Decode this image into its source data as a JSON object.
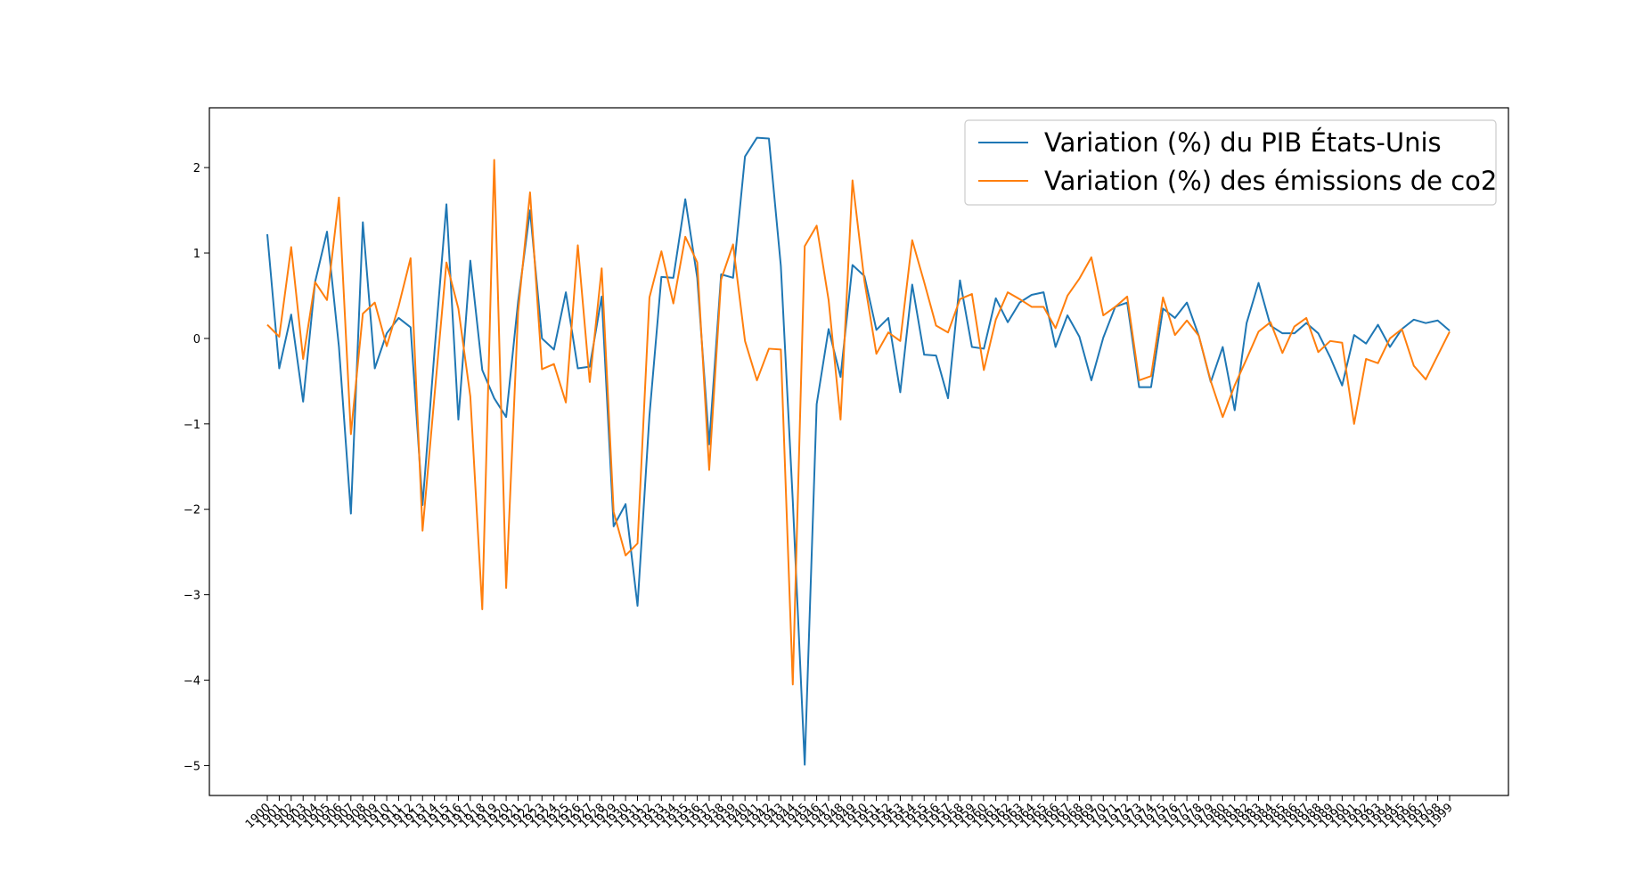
{
  "chart_data": {
    "type": "line",
    "title": "",
    "xlabel": "",
    "ylabel": "",
    "ylim": [
      -5.35,
      2.7
    ],
    "yticks": [
      -5,
      -4,
      -3,
      -2,
      -1,
      0,
      1,
      2
    ],
    "ytick_labels": [
      "−5",
      "−4",
      "−3",
      "−2",
      "−1",
      "0",
      "1",
      "2"
    ],
    "x": [
      "1900",
      "1901",
      "1902",
      "1903",
      "1904",
      "1905",
      "1906",
      "1907",
      "1908",
      "1909",
      "1910",
      "1911",
      "1912",
      "1913",
      "1914",
      "1915",
      "1916",
      "1917",
      "1918",
      "1919",
      "1920",
      "1921",
      "1922",
      "1923",
      "1924",
      "1925",
      "1926",
      "1927",
      "1928",
      "1929",
      "1930",
      "1931",
      "1932",
      "1933",
      "1934",
      "1935",
      "1936",
      "1937",
      "1938",
      "1939",
      "1940",
      "1941",
      "1942",
      "1943",
      "1944",
      "1945",
      "1946",
      "1947",
      "1948",
      "1949",
      "1950",
      "1951",
      "1952",
      "1953",
      "1954",
      "1955",
      "1956",
      "1957",
      "1958",
      "1959",
      "1960",
      "1961",
      "1962",
      "1963",
      "1964",
      "1965",
      "1966",
      "1967",
      "1968",
      "1969",
      "1970",
      "1971",
      "1972",
      "1973",
      "1974",
      "1975",
      "1976",
      "1977",
      "1978",
      "1979",
      "1980",
      "1981",
      "1982",
      "1983",
      "1984",
      "1985",
      "1986",
      "1987",
      "1988",
      "1989",
      "1990",
      "1991",
      "1992",
      "1993",
      "1994",
      "1995",
      "1996",
      "1997",
      "1998",
      "1999"
    ],
    "series": [
      {
        "name": "Variation (%) du PIB États-Unis",
        "color": "#1f77b4",
        "values": [
          1.22,
          -0.35,
          0.28,
          -0.74,
          0.66,
          1.25,
          -0.1,
          -2.05,
          1.36,
          -0.35,
          0.06,
          0.24,
          0.13,
          -1.95,
          -0.15,
          1.57,
          -0.95,
          0.91,
          -0.37,
          -0.7,
          -0.92,
          0.43,
          1.5,
          0.0,
          -0.13,
          0.54,
          -0.35,
          -0.33,
          0.49,
          -2.2,
          -1.94,
          -3.13,
          -0.9,
          0.72,
          0.71,
          1.63,
          0.71,
          -1.24,
          0.75,
          0.71,
          2.13,
          2.35,
          2.34,
          0.85,
          -1.9,
          -4.99,
          -0.77,
          0.11,
          -0.45,
          0.86,
          0.73,
          0.1,
          0.24,
          -0.63,
          0.63,
          -0.19,
          -0.2,
          -0.7,
          0.68,
          -0.1,
          -0.12,
          0.47,
          0.19,
          0.42,
          0.51,
          0.54,
          -0.1,
          0.27,
          0.02,
          -0.49,
          0.01,
          0.37,
          0.42,
          -0.57,
          -0.57,
          0.35,
          0.24,
          0.42,
          0.03,
          -0.51,
          -0.1,
          -0.84,
          0.18,
          0.65,
          0.15,
          0.06,
          0.06,
          0.18,
          0.06,
          -0.22,
          -0.55,
          0.04,
          -0.06,
          0.16,
          -0.1,
          0.11,
          0.22,
          0.18,
          0.21,
          0.09
        ]
      },
      {
        "name": "Variation (%) des émissions de co2",
        "color": "#ff7f0e",
        "values": [
          0.16,
          0.02,
          1.07,
          -0.24,
          0.66,
          0.45,
          1.65,
          -1.12,
          0.29,
          0.42,
          -0.09,
          0.38,
          0.94,
          -2.25,
          -0.67,
          0.89,
          0.35,
          -0.68,
          -3.17,
          2.09,
          -2.92,
          0.31,
          1.71,
          -0.36,
          -0.3,
          -0.75,
          1.09,
          -0.51,
          0.82,
          -2.03,
          -2.54,
          -2.4,
          0.48,
          1.02,
          0.41,
          1.19,
          0.89,
          -1.54,
          0.69,
          1.1,
          -0.03,
          -0.49,
          -0.12,
          -0.13,
          -4.05,
          1.08,
          1.32,
          0.45,
          -0.95,
          1.85,
          0.67,
          -0.18,
          0.07,
          -0.03,
          1.15,
          0.66,
          0.15,
          0.07,
          0.46,
          0.52,
          -0.37,
          0.22,
          0.54,
          0.46,
          0.37,
          0.37,
          0.12,
          0.5,
          0.7,
          0.95,
          0.27,
          0.37,
          0.49,
          -0.49,
          -0.44,
          0.48,
          0.04,
          0.21,
          0.03,
          -0.5,
          -0.92,
          -0.55,
          -0.24,
          0.08,
          0.19,
          -0.17,
          0.14,
          0.24,
          -0.16,
          -0.03,
          -0.05,
          -1.0,
          -0.24,
          -0.29,
          0.0,
          0.11,
          -0.32,
          -0.48,
          -0.2,
          0.08
        ]
      }
    ],
    "legend_position": "top-right",
    "grid": false
  }
}
